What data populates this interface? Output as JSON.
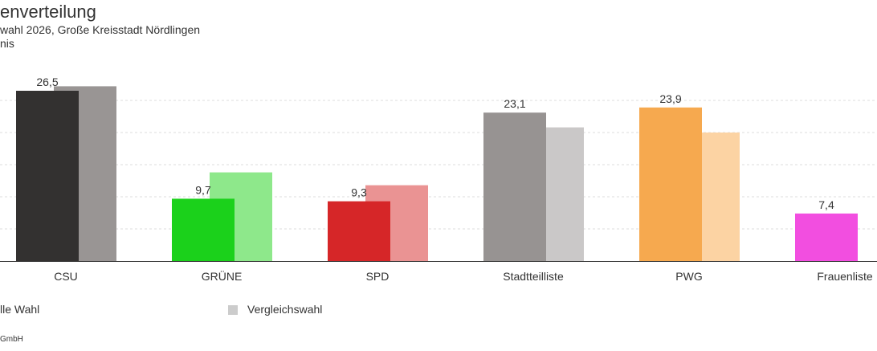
{
  "header": {
    "title": "enverteilung",
    "subtitle": "wahl 2026, Große Kreisstadt Nördlingen",
    "subtitle2": "nis"
  },
  "chart_data": {
    "type": "bar",
    "categories": [
      "CSU",
      "GRÜNE",
      "SPD",
      "Stadtteilliste",
      "PWG",
      "Frauenliste"
    ],
    "series": [
      {
        "name": "lle Wahl",
        "values": [
          26.5,
          9.7,
          9.3,
          23.1,
          23.9,
          7.4
        ],
        "colors": [
          "#333130",
          "#1bd11b",
          "#d62628",
          "#979392",
          "#f6a94f",
          "#f24ee0"
        ],
        "labels": [
          "26,5",
          "9,7",
          "9,3",
          "23,1",
          "23,9",
          "7,4"
        ]
      },
      {
        "name": "Vergleichswahl",
        "values": [
          27.2,
          13.8,
          11.8,
          20.8,
          20.0,
          null
        ],
        "colors": [
          "#999594",
          "#8ee88b",
          "#ea9393",
          "#cac8c8",
          "#fcd3a3",
          "#f8a7ef"
        ]
      }
    ],
    "ylim": [
      0,
      30
    ],
    "grid": true,
    "legend": "bottom"
  },
  "footer": {
    "credit": "GmbH"
  }
}
